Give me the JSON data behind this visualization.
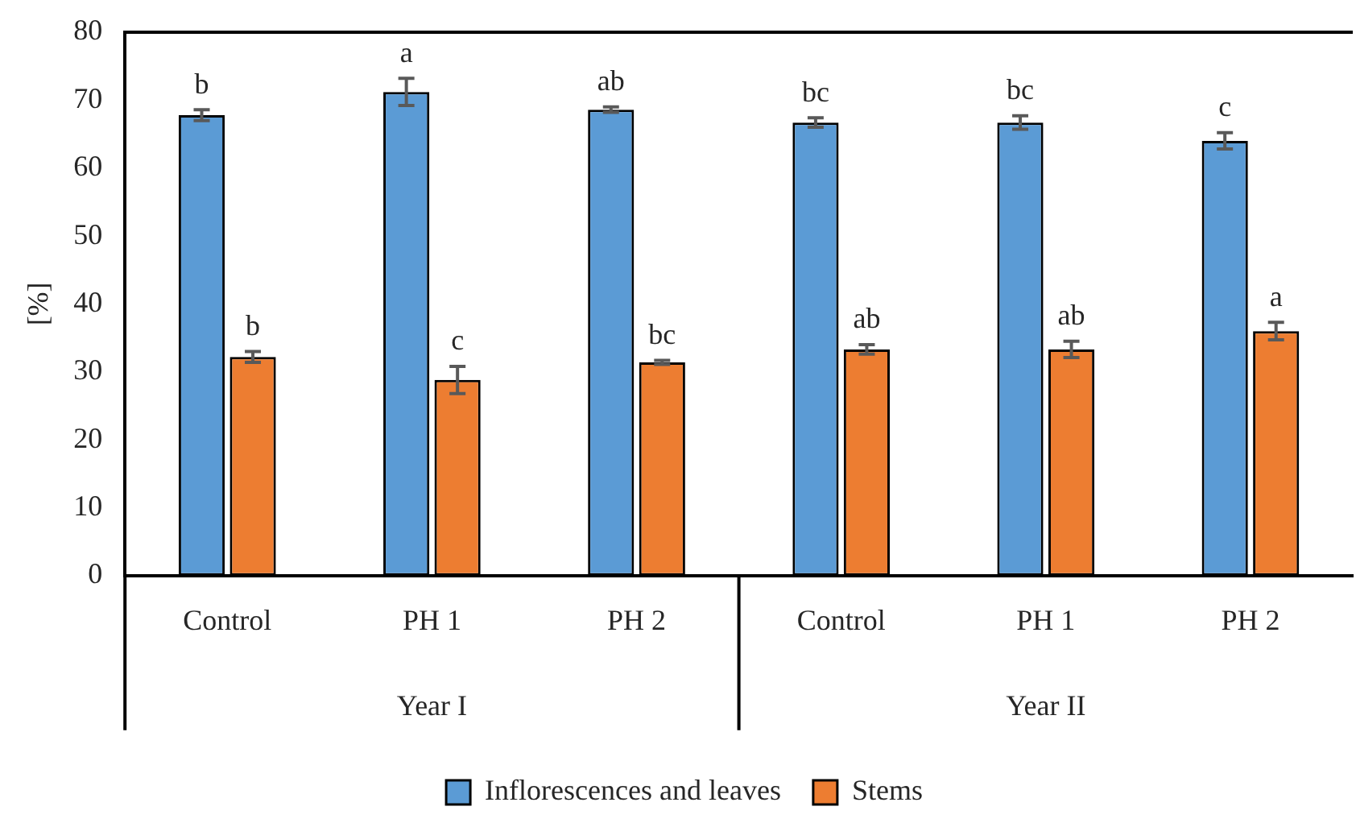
{
  "chart_data": {
    "type": "bar",
    "ylabel": "[%]",
    "categories": [
      "Control",
      "PH 1",
      "PH 2",
      "Control",
      "PH 1",
      "PH 2"
    ],
    "series": [
      {
        "name": "Inflorescences and leaves",
        "color": "#5b9bd5",
        "values": [
          67.8,
          71.2,
          68.6,
          66.7,
          66.7,
          64.0
        ],
        "errors": [
          0.8,
          2.0,
          0.4,
          0.7,
          1.0,
          1.2
        ],
        "value_labels": [
          "b",
          "a",
          "ab",
          "bc",
          "bc",
          "c"
        ]
      },
      {
        "name": "Stems",
        "color": "#ed7d31",
        "values": [
          32.2,
          28.8,
          31.4,
          33.3,
          33.3,
          36.0
        ],
        "errors": [
          0.8,
          2.0,
          0.3,
          0.7,
          1.2,
          1.3
        ],
        "value_labels": [
          "b",
          "c",
          "bc",
          "ab",
          "ab",
          "a"
        ]
      }
    ],
    "annotations": [
      "Year I",
      "Year II"
    ],
    "ylim": [
      0,
      80
    ],
    "yticks": [
      0,
      10,
      20,
      30,
      40,
      50,
      60,
      70,
      80
    ],
    "grid": false,
    "legend": "bottom"
  }
}
